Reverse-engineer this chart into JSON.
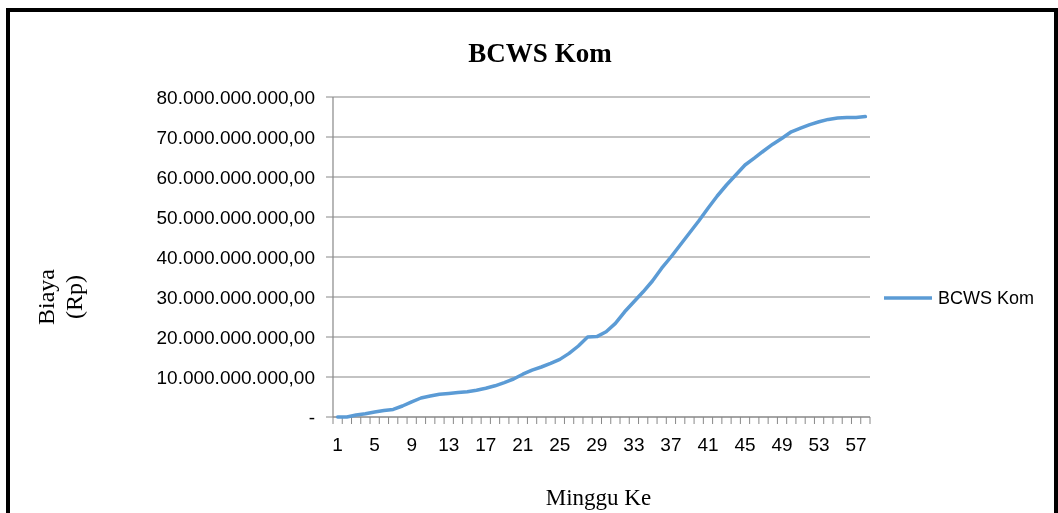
{
  "chart_data": {
    "type": "line",
    "title": "BCWS Kom",
    "xlabel": "Minggu Ke",
    "ylabel": "Biaya (Rp)",
    "categories": [
      "1",
      null,
      null,
      null,
      "5",
      null,
      null,
      null,
      "9",
      null,
      null,
      null,
      "13",
      null,
      null,
      null,
      "17",
      null,
      null,
      null,
      "21",
      null,
      null,
      null,
      "25",
      null,
      null,
      null,
      "29",
      null,
      null,
      null,
      "33",
      null,
      null,
      null,
      "37",
      null,
      null,
      null,
      "41",
      null,
      null,
      null,
      "45",
      null,
      null,
      null,
      "49",
      null,
      null,
      null,
      "53",
      null,
      null,
      null,
      "57",
      null
    ],
    "series": [
      {
        "name": "BCWS Kom",
        "color": "#5b9bd5",
        "values": [
          0,
          0,
          500000000,
          800000000,
          1250000000,
          1600000000,
          1900000000,
          2750000000,
          3800000000,
          4750000000,
          5250000000,
          5700000000,
          5900000000,
          6100000000,
          6300000000,
          6700000000,
          7200000000,
          7800000000,
          8600000000,
          9500000000,
          10700000000,
          11700000000,
          12500000000,
          13400000000,
          14400000000,
          15900000000,
          17750000000,
          20000000000,
          20100000000,
          21300000000,
          23400000000,
          26300000000,
          28800000000,
          31300000000,
          34000000000,
          37200000000,
          40000000000,
          43000000000,
          46000000000,
          49000000000,
          52200000000,
          55250000000,
          58000000000,
          60500000000,
          63000000000,
          64700000000,
          66500000000,
          68200000000,
          69700000000,
          71300000000,
          72200000000,
          73100000000,
          73800000000,
          74400000000,
          74750000000,
          74900000000,
          74900000000,
          75100000000
        ]
      }
    ],
    "ylim": [
      0,
      80000000000
    ],
    "yticks": [
      {
        "value": 0,
        "label": "-"
      },
      {
        "value": 10000000000,
        "label": "10.000.000.000,00"
      },
      {
        "value": 20000000000,
        "label": "20.000.000.000,00"
      },
      {
        "value": 30000000000,
        "label": "30.000.000.000,00"
      },
      {
        "value": 40000000000,
        "label": "40.000.000.000,00"
      },
      {
        "value": 50000000000,
        "label": "50.000.000.000,00"
      },
      {
        "value": 60000000000,
        "label": "60.000.000.000,00"
      },
      {
        "value": 70000000000,
        "label": "70.000.000.000,00"
      },
      {
        "value": 80000000000,
        "label": "80.000.000.000,00"
      }
    ],
    "grid": "y",
    "legend": "right",
    "marker": "none",
    "line_style": "solid"
  }
}
